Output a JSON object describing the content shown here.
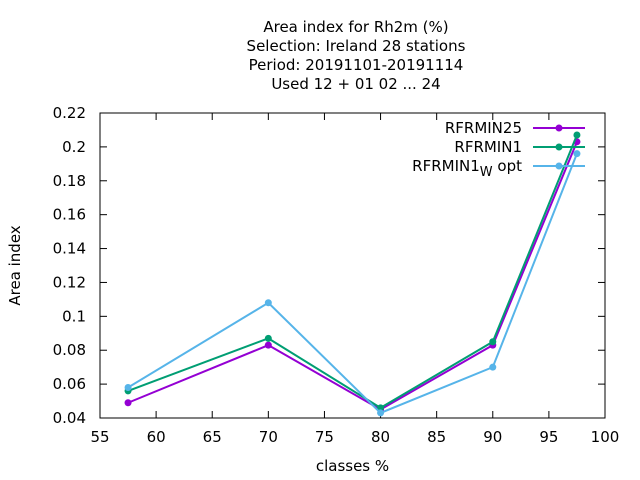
{
  "chart_data": {
    "type": "line",
    "title_lines": [
      "Area index  for Rh2m (%)",
      "Selection: Ireland      28 stations",
      "Period: 20191101-20191114",
      "Used  12 + 01 02 ... 24"
    ],
    "xlabel": "classes %",
    "ylabel": "Area index",
    "xlim": [
      55,
      100
    ],
    "ylim": [
      0.04,
      0.22
    ],
    "xticks": [
      55,
      60,
      65,
      70,
      75,
      80,
      85,
      90,
      95,
      100
    ],
    "yticks": [
      0.04,
      0.06,
      0.08,
      0.1,
      0.12,
      0.14,
      0.16,
      0.18,
      0.2,
      0.22
    ],
    "ytick_labels": [
      "0.04",
      "0.06",
      "0.08",
      "0.1",
      "0.12",
      "0.14",
      "0.16",
      "0.18",
      "0.2",
      "0.22"
    ],
    "grid": false,
    "legend_position": "top-right",
    "series": [
      {
        "name": "RFRMIN25",
        "color": "#9400d3",
        "x": [
          57.5,
          70,
          80,
          90,
          97.5
        ],
        "y": [
          0.049,
          0.083,
          0.045,
          0.083,
          0.203
        ]
      },
      {
        "name": "RFRMIN1",
        "color": "#009e73",
        "x": [
          57.5,
          70,
          80,
          90,
          97.5
        ],
        "y": [
          0.056,
          0.087,
          0.046,
          0.085,
          0.207
        ]
      },
      {
        "name": "RFRMIN1",
        "name_subscript": "W",
        "name_suffix": " opt",
        "color": "#56b4e9",
        "x": [
          57.5,
          70,
          80,
          90,
          97.5
        ],
        "y": [
          0.058,
          0.108,
          0.043,
          0.07,
          0.196
        ]
      }
    ]
  }
}
